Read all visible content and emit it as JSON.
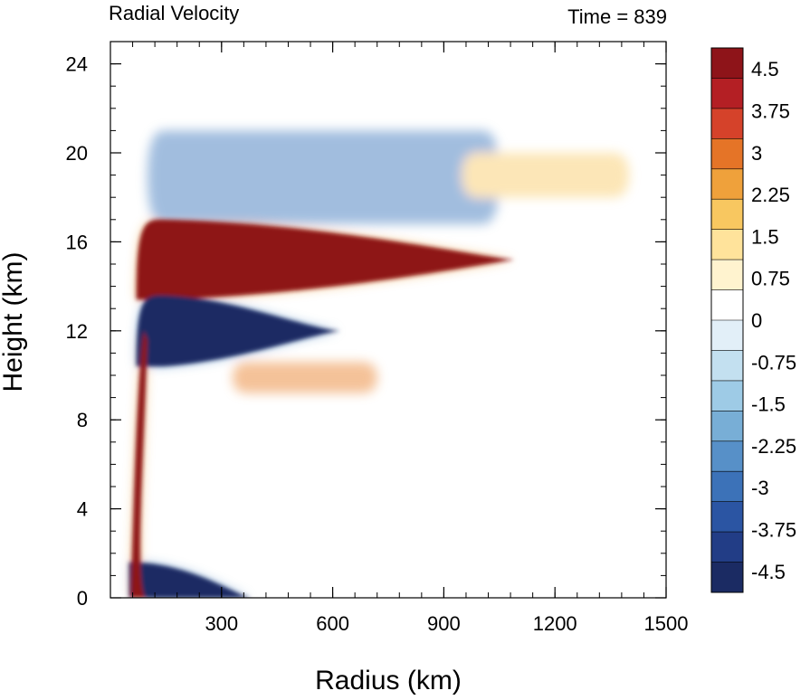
{
  "chart_data": {
    "type": "heatmap",
    "title": "Radial Velocity",
    "title_right": "Time = 839",
    "xlabel": "Radius (km)",
    "ylabel": "Height (km)",
    "xlim": [
      0,
      1500
    ],
    "ylim": [
      0,
      25
    ],
    "xticks": [
      {
        "value": 300,
        "label": "300"
      },
      {
        "value": 600,
        "label": "600"
      },
      {
        "value": 900,
        "label": "900"
      },
      {
        "value": 1200,
        "label": "1200"
      },
      {
        "value": 1500,
        "label": "1500"
      }
    ],
    "yticks": [
      {
        "value": 0,
        "label": "0"
      },
      {
        "value": 4,
        "label": "4"
      },
      {
        "value": 8,
        "label": "8"
      },
      {
        "value": 12,
        "label": "12"
      },
      {
        "value": 16,
        "label": "16"
      },
      {
        "value": 20,
        "label": "20"
      },
      {
        "value": 24,
        "label": "24"
      }
    ],
    "colorbar": {
      "levels": [
        -4.5,
        -3.75,
        -3,
        -2.25,
        -1.5,
        -0.75,
        0,
        0.75,
        1.5,
        2.25,
        3,
        3.75,
        4.5
      ],
      "labels": [
        "-4.5",
        "-3.75",
        "-3",
        "-2.25",
        "-1.5",
        "-0.75",
        "0",
        "0.75",
        "1.5",
        "2.25",
        "3",
        "3.75",
        "4.5"
      ],
      "colors": [
        "#1b2b63",
        "#223d86",
        "#2b55a3",
        "#3c72b8",
        "#5790c8",
        "#78aed6",
        "#9ecbe6",
        "#c3e0f0",
        "#e2eff8",
        "#ffffff",
        "#fff3cf",
        "#ffe39b",
        "#f8c760",
        "#efa13b",
        "#e57427",
        "#d5422a",
        "#b41f24",
        "#8e1419"
      ],
      "color_min": "#1b2b63",
      "color_max": "#8e1419"
    },
    "features": [
      {
        "name": "upper outflow jet",
        "r_range": [
          70,
          1090
        ],
        "z_range": [
          13.4,
          17.0
        ],
        "peak_value": 4.5
      },
      {
        "name": "inflow beneath outflow",
        "r_range": [
          70,
          620
        ],
        "z_range": [
          10.4,
          13.6
        ],
        "peak_value": -4.5
      },
      {
        "name": "boundary-layer inflow",
        "r_range": [
          50,
          380
        ],
        "z_range": [
          0,
          1.6
        ],
        "peak_value": -4.5
      },
      {
        "name": "eyewall outflow column",
        "r_range": [
          55,
          90
        ],
        "z_range": [
          0,
          12.0
        ],
        "peak_value": 4.5
      },
      {
        "name": "mid-level outflow",
        "r_range": [
          330,
          720
        ],
        "z_range": [
          9.2,
          10.6
        ],
        "peak_value": 3.0
      },
      {
        "name": "upper-level inflow",
        "r_range": [
          100,
          1050
        ],
        "z_range": [
          16.8,
          21.0
        ],
        "peak_value": -3.0
      },
      {
        "name": "upper-level outflow",
        "r_range": [
          950,
          1400
        ],
        "z_range": [
          18.0,
          20.0
        ],
        "peak_value": 1.8
      }
    ]
  }
}
